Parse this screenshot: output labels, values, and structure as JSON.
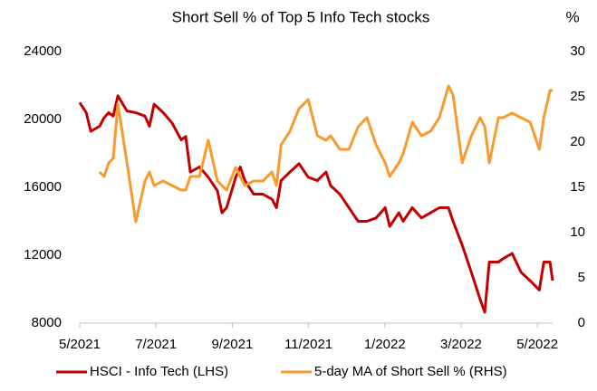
{
  "chart_data": {
    "type": "line",
    "title": "Short Sell % of Top 5 Info Tech stocks",
    "y2_label": "%",
    "x": [
      0,
      0.17,
      0.29,
      0.52,
      0.64,
      0.76,
      0.88,
      1.0,
      1.24,
      1.47,
      1.71,
      1.83,
      1.95,
      2.19,
      2.42,
      2.66,
      2.78,
      2.9,
      3.14,
      3.37,
      3.61,
      3.73,
      3.85,
      4.09,
      4.21,
      4.33,
      4.56,
      4.8,
      5.04,
      5.16,
      5.28,
      5.51,
      5.75,
      5.99,
      6.23,
      6.46,
      6.58,
      6.82,
      7.06,
      7.3,
      7.53,
      7.77,
      8.01,
      8.13,
      8.37,
      8.48,
      8.72,
      8.96,
      9.2,
      9.43,
      9.67,
      9.79,
      10.03,
      10.27,
      10.5,
      10.62,
      10.74,
      10.98,
      11.1,
      11.34,
      11.57,
      11.81,
      12.05,
      12.17,
      12.33,
      12.4
    ],
    "series": [
      {
        "name": "HSCI - Info Tech (LHS)",
        "color": "#c00000",
        "values": [
          21000,
          20400,
          19300,
          19600,
          20100,
          20400,
          20200,
          21400,
          20500,
          20400,
          20200,
          19600,
          20900,
          20400,
          19800,
          18800,
          19000,
          16900,
          17200,
          16600,
          15800,
          14500,
          14800,
          16600,
          17200,
          16400,
          15600,
          15600,
          15300,
          14800,
          16400,
          16900,
          17400,
          16600,
          16400,
          16900,
          16100,
          15600,
          14800,
          14000,
          14000,
          14200,
          14800,
          13700,
          14500,
          14000,
          14800,
          14200,
          14500,
          14800,
          14800,
          14000,
          12600,
          11000,
          9400,
          8640,
          11600,
          11600,
          11800,
          12100,
          11000,
          10500,
          9950,
          11600,
          11600,
          10500
        ]
      },
      {
        "name": "5-day MA of Short Sell % (RHS)",
        "color": "#f79a2f",
        "axis": "y2",
        "values": [
          null,
          null,
          null,
          16.7,
          16.2,
          17.7,
          18.2,
          24.2,
          17.7,
          11.2,
          15.7,
          16.7,
          15.2,
          15.7,
          15.2,
          14.7,
          14.7,
          16.2,
          16.2,
          20.2,
          15.7,
          15.2,
          14.7,
          17.2,
          16.2,
          15.2,
          15.7,
          15.7,
          16.7,
          15.2,
          19.7,
          21.2,
          23.7,
          24.7,
          20.7,
          20.2,
          20.7,
          19.2,
          19.2,
          21.7,
          22.7,
          19.7,
          17.7,
          16.2,
          17.7,
          18.7,
          22.2,
          20.7,
          21.2,
          22.7,
          26.2,
          25.2,
          17.7,
          20.7,
          22.7,
          21.7,
          17.7,
          22.7,
          22.7,
          23.2,
          22.7,
          22.2,
          19.2,
          22.7,
          25.7,
          25.7
        ]
      }
    ],
    "xlim": [
      0,
      12.4
    ],
    "xticks": [
      {
        "value": 0,
        "label": "5/2021"
      },
      {
        "value": 2,
        "label": "7/2021"
      },
      {
        "value": 4,
        "label": "9/2021"
      },
      {
        "value": 6,
        "label": "11/2021"
      },
      {
        "value": 8,
        "label": "1/2022"
      },
      {
        "value": 10,
        "label": "3/2022"
      },
      {
        "value": 12,
        "label": "5/2022"
      }
    ],
    "ylim": [
      8000,
      24000
    ],
    "yticks": [
      8000,
      12000,
      16000,
      20000,
      24000
    ],
    "y2lim": [
      0,
      30
    ],
    "y2ticks": [
      0,
      5,
      10,
      15,
      20,
      25,
      30
    ],
    "grid": false,
    "legend": "bottom"
  }
}
